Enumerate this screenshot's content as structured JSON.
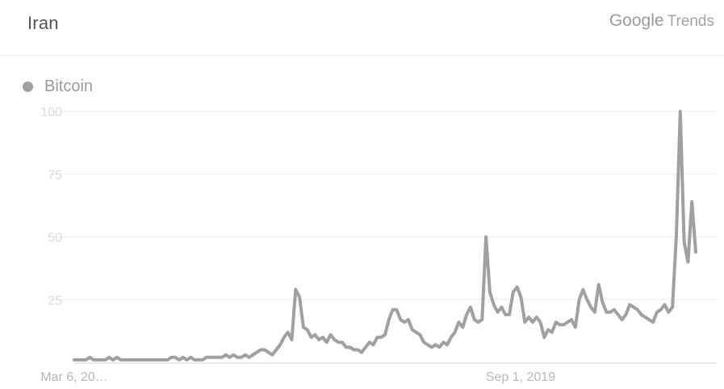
{
  "header": {
    "title": "Iran",
    "brand_logo": "Google",
    "brand_suffix": "Trends"
  },
  "colors": {
    "series": "#a0a0a0",
    "grid": "#eeeeee",
    "axis": "#d0d0d0"
  },
  "chart_data": {
    "type": "line",
    "title": "",
    "xlabel": "",
    "ylabel": "",
    "ylim": [
      0,
      100
    ],
    "yticks": [
      "25",
      "50",
      "75",
      "100"
    ],
    "x_tick_labels": [
      "Mar 6, 20…",
      "Sep 1, 2019"
    ],
    "grid": true,
    "legend_position": "top-left",
    "series": [
      {
        "name": "Bitcoin",
        "color": "#a0a0a0",
        "values": [
          1,
          1,
          1,
          1,
          2,
          1,
          1,
          1,
          1,
          2,
          1,
          2,
          1,
          1,
          1,
          1,
          1,
          1,
          1,
          1,
          1,
          1,
          1,
          1,
          1,
          2,
          2,
          1,
          2,
          1,
          2,
          1,
          1,
          1,
          2,
          2,
          2,
          2,
          2,
          3,
          2,
          3,
          2,
          2,
          3,
          2,
          3,
          4,
          5,
          5,
          4,
          3,
          5,
          7,
          10,
          12,
          9,
          29,
          26,
          14,
          13,
          10,
          11,
          9,
          10,
          8,
          11,
          9,
          8,
          8,
          6,
          6,
          5,
          5,
          4,
          6,
          8,
          7,
          10,
          10,
          11,
          17,
          21,
          21,
          17,
          16,
          17,
          13,
          12,
          11,
          8,
          7,
          6,
          7,
          6,
          8,
          7,
          10,
          12,
          16,
          14,
          19,
          22,
          17,
          16,
          17,
          50,
          28,
          23,
          20,
          22,
          19,
          19,
          28,
          30,
          26,
          16,
          18,
          16,
          18,
          16,
          10,
          13,
          12,
          16,
          15,
          15,
          16,
          17,
          14,
          25,
          29,
          25,
          22,
          20,
          31,
          24,
          20,
          20,
          21,
          19,
          17,
          19,
          23,
          22,
          21,
          19,
          18,
          17,
          16,
          20,
          21,
          23,
          20,
          22,
          50,
          100,
          48,
          40,
          64,
          44
        ]
      }
    ]
  }
}
